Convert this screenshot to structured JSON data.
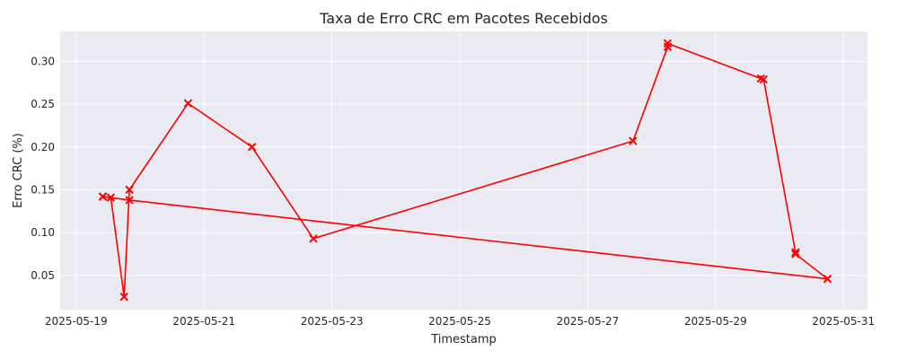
{
  "chart_data": {
    "type": "line",
    "title": "Taxa de Erro CRC em Pacotes Recebidos",
    "xlabel": "Timestamp",
    "ylabel": "Erro CRC (%)",
    "x_ticks": [
      "2025-05-19",
      "2025-05-21",
      "2025-05-23",
      "2025-05-25",
      "2025-05-27",
      "2025-05-29",
      "2025-05-31"
    ],
    "y_ticks": [
      "0.05",
      "0.10",
      "0.15",
      "0.20",
      "0.25",
      "0.30"
    ],
    "xlim": [
      "2025-05-18T18:00",
      "2025-05-31T09:00"
    ],
    "ylim": [
      0.01,
      0.335
    ],
    "grid": true,
    "marker": "x",
    "colors": {
      "line": "#ff0000",
      "plot_background": "#eaeaf2",
      "grid": "#ffffff"
    },
    "series": [
      {
        "points": [
          {
            "x": "2025-05-19T10:00",
            "y": 0.142
          },
          {
            "x": "2025-05-19T13:00",
            "y": 0.141
          },
          {
            "x": "2025-05-19T18:00",
            "y": 0.025
          },
          {
            "x": "2025-05-19T20:00",
            "y": 0.15
          },
          {
            "x": "2025-05-20T18:00",
            "y": 0.251
          },
          {
            "x": "2025-05-21T18:00",
            "y": 0.2
          },
          {
            "x": "2025-05-22T17:00",
            "y": 0.093
          },
          {
            "x": "2025-05-27T17:00",
            "y": 0.207
          },
          {
            "x": "2025-05-28T06:00",
            "y": 0.317
          },
          {
            "x": "2025-05-28T06:00",
            "y": 0.321
          },
          {
            "x": "2025-05-29T17:00",
            "y": 0.28
          },
          {
            "x": "2025-05-29T18:00",
            "y": 0.279
          },
          {
            "x": "2025-05-30T06:00",
            "y": 0.077
          },
          {
            "x": "2025-05-30T06:00",
            "y": 0.075
          },
          {
            "x": "2025-05-30T18:00",
            "y": 0.046
          },
          {
            "x": "2025-05-19T20:00",
            "y": 0.138
          },
          {
            "x": "2025-05-19T10:00",
            "y": 0.142
          }
        ]
      }
    ]
  }
}
